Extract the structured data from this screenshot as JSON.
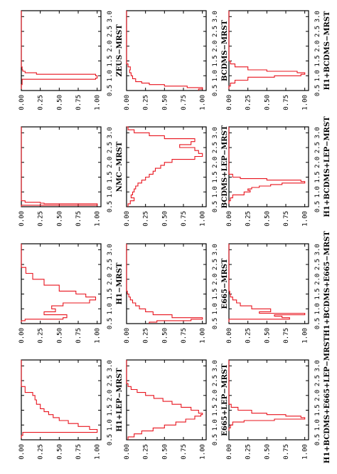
{
  "figure": {
    "orientation": "rotated 90 degrees counter-clockwise",
    "line_color": "#e8141e",
    "frame_color": "#000000"
  },
  "chart_data": [
    {
      "type": "line",
      "title": "ZEUS−MRST",
      "x_ticks": [
        "0.5",
        "1.0",
        "1.5",
        "2.0",
        "2.5",
        "3.0"
      ],
      "y_ticks": [
        "0.00",
        "0.25",
        "0.50",
        "0.75",
        "1.00"
      ],
      "xlim": [
        0.5,
        3.2
      ],
      "ylim": [
        0,
        1.05
      ],
      "series": [
        {
          "x": [
            0.55,
            0.62,
            0.7,
            0.8,
            0.88,
            0.92,
            0.96,
            1.0,
            1.05,
            1.1,
            1.15,
            1.2,
            1.3,
            1.5,
            3.2
          ],
          "y": [
            0.0,
            0.0,
            0.01,
            0.01,
            0.98,
            1.0,
            1.0,
            0.98,
            0.2,
            0.05,
            0.02,
            0.01,
            0.0,
            0.0,
            0.0
          ]
        }
      ]
    },
    {
      "type": "line",
      "title": "NMC−MRST",
      "x_ticks": [
        "0.5",
        "1.0",
        "1.5",
        "2.0",
        "2.5",
        "3.0"
      ],
      "y_ticks": [
        "0.00",
        "0.25",
        "0.50",
        "0.75",
        "1.00"
      ],
      "xlim": [
        0.5,
        3.2
      ],
      "ylim": [
        0,
        1.05
      ],
      "series": [
        {
          "x": [
            0.5,
            0.55,
            0.58,
            0.6,
            0.62,
            0.65,
            0.7,
            3.2
          ],
          "y": [
            0.0,
            1.0,
            1.0,
            0.3,
            0.25,
            0.05,
            0.0,
            0.0
          ]
        }
      ]
    },
    {
      "type": "line",
      "title": "H1−MRST",
      "x_ticks": [
        "0.5",
        "1.0",
        "1.5",
        "2.0",
        "2.5",
        "3.0"
      ],
      "y_ticks": [
        "0.00",
        "0.25",
        "0.50",
        "0.75",
        "1.00"
      ],
      "xlim": [
        0.5,
        3.2
      ],
      "ylim": [
        0,
        1.05
      ],
      "series": [
        {
          "x": [
            0.55,
            0.6,
            0.65,
            0.7,
            0.8,
            0.9,
            1.0,
            1.1,
            1.2,
            1.3,
            1.4,
            1.5,
            1.6,
            1.8,
            2.0,
            2.2,
            2.4,
            3.2
          ],
          "y": [
            0.0,
            0.05,
            0.55,
            0.6,
            0.3,
            0.45,
            0.4,
            0.55,
            0.9,
            0.98,
            0.85,
            0.72,
            0.5,
            0.3,
            0.15,
            0.06,
            0.0,
            0.0
          ]
        }
      ]
    },
    {
      "type": "line",
      "title": "H1+LEP−MRST",
      "x_ticks": [
        "0.5",
        "1.0",
        "1.5",
        "2.0",
        "2.5",
        "3.0"
      ],
      "y_ticks": [
        "0.00",
        "0.25",
        "0.50",
        "0.75",
        "1.00"
      ],
      "xlim": [
        0.5,
        3.2
      ],
      "ylim": [
        0,
        1.05
      ],
      "series": [
        {
          "x": [
            0.55,
            0.65,
            0.75,
            0.85,
            0.95,
            1.05,
            1.15,
            1.25,
            1.35,
            1.45,
            1.55,
            1.7,
            1.85,
            2.0,
            2.1,
            2.3,
            3.2
          ],
          "y": [
            0.0,
            0.02,
            1.0,
            0.9,
            0.75,
            0.62,
            0.5,
            0.42,
            0.36,
            0.3,
            0.25,
            0.2,
            0.18,
            0.15,
            0.05,
            0.0,
            0.0
          ]
        }
      ]
    },
    {
      "type": "line",
      "title": "BCDMS−MRST",
      "x_ticks": [
        "0.5",
        "1.0",
        "1.5",
        "2.0",
        "2.5",
        "3.0"
      ],
      "y_ticks": [
        "0.00",
        "0.25",
        "0.50",
        "0.75",
        "1.00"
      ],
      "xlim": [
        0.5,
        3.2
      ],
      "ylim": [
        0,
        1.05
      ],
      "series": [
        {
          "x": [
            0.5,
            0.55,
            0.6,
            0.65,
            0.7,
            0.75,
            0.8,
            0.9,
            1.0,
            1.1,
            1.2,
            1.3,
            1.4,
            3.2
          ],
          "y": [
            0.95,
            1.0,
            0.8,
            0.5,
            0.3,
            0.2,
            0.12,
            0.08,
            0.06,
            0.04,
            0.05,
            0.02,
            0.0,
            0.0
          ]
        }
      ]
    },
    {
      "type": "line",
      "title": "BCDMS+LEP−MRST",
      "x_ticks": [
        "0.5",
        "1.0",
        "1.5",
        "2.0",
        "2.5",
        "3.0"
      ],
      "y_ticks": [
        "0.00",
        "0.25",
        "0.50",
        "0.75",
        "1.00"
      ],
      "xlim": [
        0.5,
        3.2
      ],
      "ylim": [
        0,
        1.05
      ],
      "series": [
        {
          "x": [
            0.5,
            0.6,
            0.7,
            0.8,
            0.9,
            1.0,
            1.1,
            1.2,
            1.3,
            1.4,
            1.5,
            1.6,
            1.7,
            1.8,
            1.9,
            2.0,
            2.1,
            2.2,
            2.3,
            2.4,
            2.5,
            2.6,
            2.7,
            2.8,
            2.9,
            3.0,
            3.1,
            3.2
          ],
          "y": [
            0.02,
            0.05,
            0.1,
            0.06,
            0.08,
            0.1,
            0.12,
            0.15,
            0.2,
            0.25,
            0.3,
            0.35,
            0.38,
            0.45,
            0.5,
            0.6,
            0.9,
            1.0,
            0.95,
            0.9,
            0.7,
            0.85,
            0.9,
            0.5,
            0.3,
            0.1,
            0.02,
            0.0
          ]
        }
      ]
    },
    {
      "type": "line",
      "title": "E665−MRST",
      "x_ticks": [
        "0.5",
        "1.0",
        "1.5",
        "2.0",
        "2.5",
        "3.0"
      ],
      "y_ticks": [
        "0.00",
        "0.25",
        "0.50",
        "0.75",
        "1.00"
      ],
      "xlim": [
        0.5,
        3.2
      ],
      "ylim": [
        0,
        1.05
      ],
      "series": [
        {
          "x": [
            0.5,
            0.55,
            0.6,
            0.65,
            0.7,
            0.8,
            0.9,
            1.0,
            1.1,
            1.2,
            1.3,
            1.4,
            1.5,
            1.6,
            3.2
          ],
          "y": [
            0.3,
            0.4,
            0.85,
            1.0,
            0.6,
            0.35,
            0.25,
            0.17,
            0.12,
            0.08,
            0.05,
            0.03,
            0.01,
            0.0,
            0.0
          ]
        }
      ]
    },
    {
      "type": "line",
      "title": "E665+LEP−MRST",
      "x_ticks": [
        "0.5",
        "1.0",
        "1.5",
        "2.0",
        "2.5",
        "3.0"
      ],
      "y_ticks": [
        "0.00",
        "0.25",
        "0.50",
        "0.75",
        "1.00"
      ],
      "xlim": [
        0.5,
        3.2
      ],
      "ylim": [
        0,
        1.05
      ],
      "series": [
        {
          "x": [
            0.5,
            0.6,
            0.7,
            0.8,
            0.9,
            1.0,
            1.1,
            1.2,
            1.3,
            1.35,
            1.4,
            1.5,
            1.6,
            1.7,
            1.8,
            1.9,
            2.0,
            2.1,
            2.2,
            2.3,
            2.4,
            3.2
          ],
          "y": [
            0.02,
            0.1,
            0.2,
            0.35,
            0.5,
            0.65,
            0.78,
            0.9,
            0.98,
            1.0,
            0.95,
            0.85,
            0.72,
            0.6,
            0.48,
            0.36,
            0.25,
            0.14,
            0.06,
            0.02,
            0.0,
            0.0
          ]
        }
      ]
    },
    {
      "type": "line",
      "title": "H1+BCDMS−MRST",
      "x_ticks": [
        "0.5",
        "1.0",
        "1.5",
        "2.0",
        "2.5",
        "3.0"
      ],
      "y_ticks": [
        "0.00",
        "0.25",
        "0.50",
        "0.75",
        "1.00"
      ],
      "xlim": [
        0.5,
        3.2
      ],
      "ylim": [
        0,
        1.05
      ],
      "series": [
        {
          "x": [
            0.55,
            0.65,
            0.75,
            0.85,
            0.95,
            1.0,
            1.05,
            1.1,
            1.15,
            1.2,
            1.3,
            1.4,
            1.5,
            3.2
          ],
          "y": [
            0.0,
            0.02,
            0.08,
            0.25,
            0.6,
            0.95,
            1.0,
            0.9,
            0.5,
            0.25,
            0.08,
            0.02,
            0.0,
            0.0
          ]
        }
      ]
    },
    {
      "type": "line",
      "title": "H1+BCDMS+LEP−MRST",
      "x_ticks": [
        "0.5",
        "1.0",
        "1.5",
        "2.0",
        "2.5",
        "3.0"
      ],
      "y_ticks": [
        "0.00",
        "0.25",
        "0.50",
        "0.75",
        "1.00"
      ],
      "xlim": [
        0.5,
        3.2
      ],
      "ylim": [
        0,
        1.05
      ],
      "series": [
        {
          "x": [
            0.6,
            0.7,
            0.8,
            0.9,
            1.0,
            1.05,
            1.1,
            1.15,
            1.2,
            1.25,
            1.3,
            1.35,
            1.4,
            1.45,
            1.5,
            1.6,
            3.2
          ],
          "y": [
            0.0,
            0.02,
            0.05,
            0.2,
            0.28,
            0.25,
            0.3,
            0.4,
            0.55,
            0.7,
            1.0,
            0.95,
            0.5,
            0.15,
            0.05,
            0.0,
            0.0
          ]
        }
      ]
    },
    {
      "type": "line",
      "title": "H1+BCDMS+E665−MRST",
      "x_ticks": [
        "0.5",
        "1.0",
        "1.5",
        "2.0",
        "2.5",
        "3.0"
      ],
      "y_ticks": [
        "0.00",
        "0.25",
        "0.50",
        "0.75",
        "1.00"
      ],
      "xlim": [
        0.5,
        3.2
      ],
      "ylim": [
        0,
        1.05
      ],
      "series": [
        {
          "x": [
            0.55,
            0.65,
            0.7,
            0.75,
            0.8,
            0.85,
            0.9,
            1.0,
            1.1,
            1.2,
            1.3,
            1.4,
            1.5,
            1.6,
            3.2
          ],
          "y": [
            0.0,
            0.8,
            0.7,
            0.6,
            1.0,
            0.4,
            0.55,
            0.3,
            0.15,
            0.1,
            0.05,
            0.02,
            0.01,
            0.0,
            0.0
          ]
        }
      ]
    },
    {
      "type": "line",
      "title": "H1+BCDMS+E665+LEP−MRST",
      "x_ticks": [
        "0.5",
        "1.0",
        "1.5",
        "2.0",
        "2.5",
        "3.0"
      ],
      "y_ticks": [
        "0.00",
        "0.25",
        "0.50",
        "0.75",
        "1.00"
      ],
      "xlim": [
        0.5,
        3.2
      ],
      "ylim": [
        0,
        1.05
      ],
      "series": [
        {
          "x": [
            0.8,
            0.9,
            1.0,
            1.1,
            1.15,
            1.2,
            1.25,
            1.3,
            1.35,
            1.4,
            1.5,
            1.6,
            1.7,
            3.2
          ],
          "y": [
            0.0,
            0.02,
            0.05,
            0.2,
            0.6,
            1.0,
            0.95,
            0.75,
            0.5,
            0.3,
            0.12,
            0.03,
            0.0,
            0.0
          ]
        }
      ]
    }
  ]
}
